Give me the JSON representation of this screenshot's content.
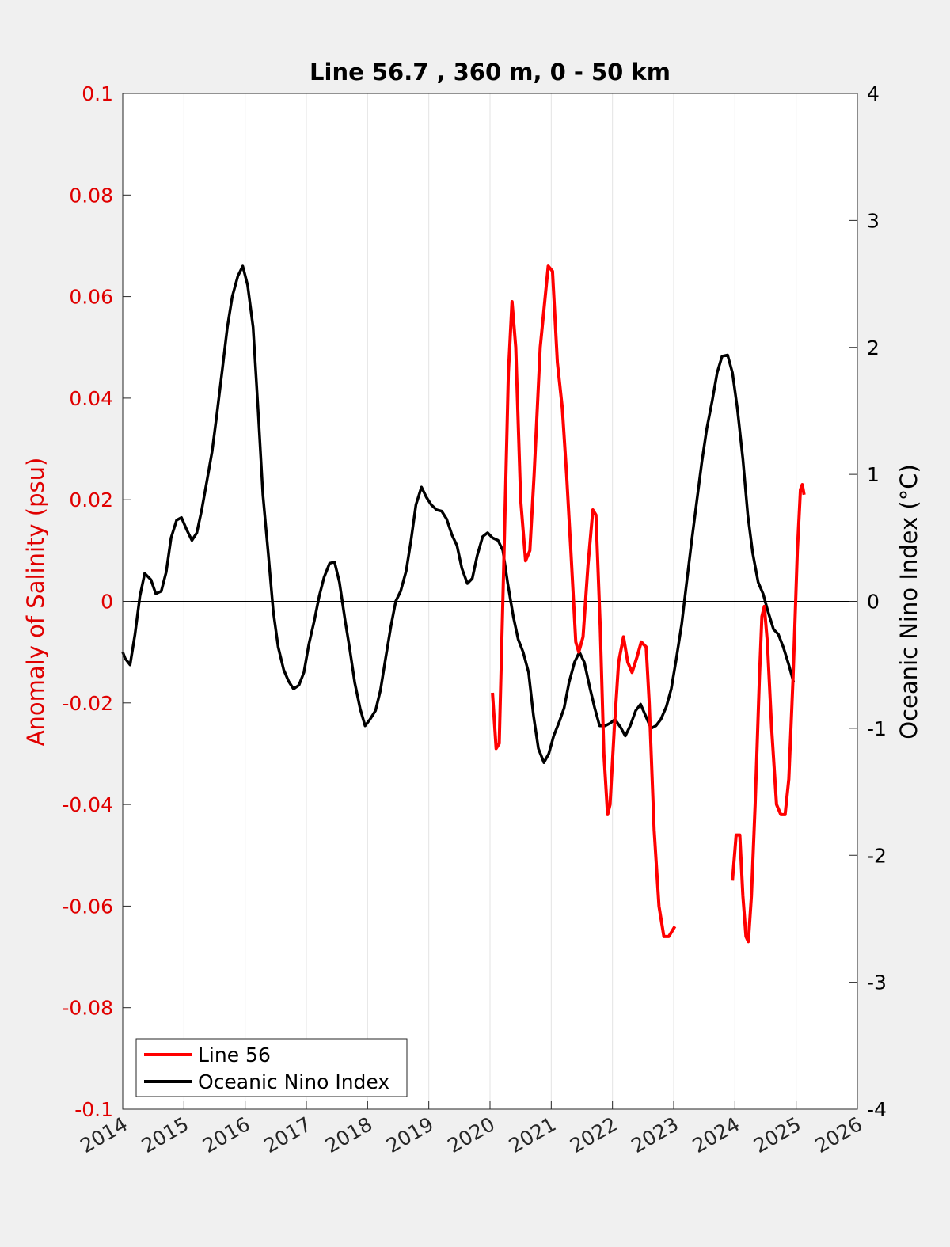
{
  "chart_data": {
    "type": "line",
    "title": "Line 56.7 , 360 m, 0 - 50 km",
    "xlabel": "",
    "ylabel_left": "Anomaly of Salinity (psu)",
    "ylabel_right": "Oceanic Nino Index (°C)",
    "xlim": [
      2014,
      2026
    ],
    "ylim_left": [
      -0.1,
      0.1
    ],
    "ylim_right": [
      -4,
      4
    ],
    "x_ticks": [
      "2014",
      "2015",
      "2016",
      "2017",
      "2018",
      "2019",
      "2020",
      "2021",
      "2022",
      "2023",
      "2024",
      "2025",
      "2026"
    ],
    "y_ticks_left": [
      "0.1",
      "0.08",
      "0.06",
      "0.04",
      "0.02",
      "0",
      "-0.02",
      "-0.04",
      "-0.06",
      "-0.08",
      "-0.1"
    ],
    "y_ticks_right": [
      "4",
      "3",
      "2",
      "1",
      "0",
      "-1",
      "-2",
      "-3",
      "-4"
    ],
    "grid": "vertical",
    "zero_line": true,
    "legend_position": "bottom-left",
    "colors": {
      "salinity": "#ff0000",
      "oni": "#000000",
      "left_axis": "#e00000",
      "right_axis": "#000000"
    },
    "series": [
      {
        "name": "Line 56",
        "axis": "left",
        "color": "#ff0000",
        "segments": [
          [
            [
              2020.04,
              -0.018
            ],
            [
              2020.1,
              -0.029
            ],
            [
              2020.15,
              -0.028
            ],
            [
              2020.22,
              0.005
            ],
            [
              2020.3,
              0.045
            ],
            [
              2020.36,
              0.059
            ],
            [
              2020.42,
              0.05
            ],
            [
              2020.5,
              0.02
            ],
            [
              2020.58,
              0.008
            ],
            [
              2020.65,
              0.01
            ],
            [
              2020.72,
              0.025
            ],
            [
              2020.82,
              0.05
            ],
            [
              2020.95,
              0.066
            ],
            [
              2021.02,
              0.065
            ],
            [
              2021.1,
              0.047
            ],
            [
              2021.18,
              0.038
            ],
            [
              2021.25,
              0.025
            ],
            [
              2021.32,
              0.01
            ],
            [
              2021.4,
              -0.008
            ],
            [
              2021.45,
              -0.01
            ],
            [
              2021.52,
              -0.007
            ],
            [
              2021.6,
              0.007
            ],
            [
              2021.68,
              0.018
            ],
            [
              2021.73,
              0.017
            ],
            [
              2021.8,
              -0.005
            ],
            [
              2021.86,
              -0.03
            ],
            [
              2021.92,
              -0.042
            ],
            [
              2021.96,
              -0.04
            ],
            [
              2022.03,
              -0.025
            ],
            [
              2022.1,
              -0.012
            ],
            [
              2022.18,
              -0.007
            ],
            [
              2022.25,
              -0.012
            ],
            [
              2022.32,
              -0.014
            ],
            [
              2022.4,
              -0.011
            ],
            [
              2022.47,
              -0.008
            ],
            [
              2022.55,
              -0.009
            ],
            [
              2022.6,
              -0.02
            ],
            [
              2022.68,
              -0.045
            ],
            [
              2022.76,
              -0.06
            ],
            [
              2022.84,
              -0.066
            ],
            [
              2022.92,
              -0.066
            ],
            [
              2023.02,
              -0.064
            ]
          ],
          [
            [
              2023.96,
              -0.055
            ],
            [
              2024.02,
              -0.046
            ],
            [
              2024.08,
              -0.046
            ],
            [
              2024.13,
              -0.058
            ],
            [
              2024.18,
              -0.066
            ],
            [
              2024.22,
              -0.067
            ],
            [
              2024.27,
              -0.058
            ],
            [
              2024.33,
              -0.04
            ],
            [
              2024.4,
              -0.015
            ],
            [
              2024.44,
              -0.003
            ],
            [
              2024.48,
              -0.001
            ],
            [
              2024.53,
              -0.008
            ],
            [
              2024.6,
              -0.025
            ],
            [
              2024.68,
              -0.04
            ],
            [
              2024.75,
              -0.042
            ],
            [
              2024.82,
              -0.042
            ],
            [
              2024.88,
              -0.035
            ],
            [
              2024.95,
              -0.015
            ],
            [
              2025.02,
              0.01
            ],
            [
              2025.07,
              0.022
            ],
            [
              2025.1,
              0.023
            ],
            [
              2025.13,
              0.021
            ]
          ]
        ]
      },
      {
        "name": "Oceanic Nino Index",
        "axis": "right",
        "color": "#000000",
        "points": [
          [
            2014.0,
            -0.4
          ],
          [
            2014.04,
            -0.45
          ],
          [
            2014.12,
            -0.5
          ],
          [
            2014.2,
            -0.26
          ],
          [
            2014.28,
            0.04
          ],
          [
            2014.36,
            0.22
          ],
          [
            2014.46,
            0.17
          ],
          [
            2014.54,
            0.06
          ],
          [
            2014.63,
            0.08
          ],
          [
            2014.71,
            0.23
          ],
          [
            2014.79,
            0.5
          ],
          [
            2014.88,
            0.64
          ],
          [
            2014.96,
            0.66
          ],
          [
            2015.04,
            0.57
          ],
          [
            2015.13,
            0.48
          ],
          [
            2015.21,
            0.54
          ],
          [
            2015.29,
            0.72
          ],
          [
            2015.38,
            0.96
          ],
          [
            2015.46,
            1.18
          ],
          [
            2015.54,
            1.48
          ],
          [
            2015.63,
            1.84
          ],
          [
            2015.71,
            2.16
          ],
          [
            2015.79,
            2.4
          ],
          [
            2015.88,
            2.56
          ],
          [
            2015.96,
            2.64
          ],
          [
            2016.04,
            2.49
          ],
          [
            2016.13,
            2.16
          ],
          [
            2016.21,
            1.52
          ],
          [
            2016.29,
            0.84
          ],
          [
            2016.38,
            0.36
          ],
          [
            2016.46,
            -0.08
          ],
          [
            2016.54,
            -0.36
          ],
          [
            2016.63,
            -0.54
          ],
          [
            2016.71,
            -0.63
          ],
          [
            2016.79,
            -0.69
          ],
          [
            2016.88,
            -0.66
          ],
          [
            2016.96,
            -0.56
          ],
          [
            2017.04,
            -0.34
          ],
          [
            2017.13,
            -0.15
          ],
          [
            2017.21,
            0.04
          ],
          [
            2017.29,
            0.19
          ],
          [
            2017.38,
            0.3
          ],
          [
            2017.46,
            0.31
          ],
          [
            2017.54,
            0.15
          ],
          [
            2017.63,
            -0.14
          ],
          [
            2017.71,
            -0.38
          ],
          [
            2017.79,
            -0.64
          ],
          [
            2017.88,
            -0.85
          ],
          [
            2017.96,
            -0.98
          ],
          [
            2018.04,
            -0.93
          ],
          [
            2018.13,
            -0.86
          ],
          [
            2018.21,
            -0.7
          ],
          [
            2018.29,
            -0.46
          ],
          [
            2018.38,
            -0.2
          ],
          [
            2018.46,
            0.0
          ],
          [
            2018.54,
            0.08
          ],
          [
            2018.63,
            0.24
          ],
          [
            2018.71,
            0.48
          ],
          [
            2018.79,
            0.76
          ],
          [
            2018.88,
            0.9
          ],
          [
            2018.96,
            0.82
          ],
          [
            2019.04,
            0.76
          ],
          [
            2019.13,
            0.72
          ],
          [
            2019.21,
            0.71
          ],
          [
            2019.29,
            0.65
          ],
          [
            2019.38,
            0.52
          ],
          [
            2019.46,
            0.44
          ],
          [
            2019.54,
            0.26
          ],
          [
            2019.63,
            0.14
          ],
          [
            2019.71,
            0.18
          ],
          [
            2019.79,
            0.36
          ],
          [
            2019.88,
            0.51
          ],
          [
            2019.96,
            0.54
          ],
          [
            2020.04,
            0.5
          ],
          [
            2020.13,
            0.48
          ],
          [
            2020.21,
            0.4
          ],
          [
            2020.29,
            0.14
          ],
          [
            2020.38,
            -0.12
          ],
          [
            2020.46,
            -0.3
          ],
          [
            2020.54,
            -0.4
          ],
          [
            2020.63,
            -0.56
          ],
          [
            2020.71,
            -0.9
          ],
          [
            2020.79,
            -1.16
          ],
          [
            2020.88,
            -1.27
          ],
          [
            2020.96,
            -1.2
          ],
          [
            2021.04,
            -1.06
          ],
          [
            2021.13,
            -0.95
          ],
          [
            2021.21,
            -0.84
          ],
          [
            2021.29,
            -0.64
          ],
          [
            2021.38,
            -0.48
          ],
          [
            2021.46,
            -0.4
          ],
          [
            2021.54,
            -0.48
          ],
          [
            2021.63,
            -0.68
          ],
          [
            2021.71,
            -0.84
          ],
          [
            2021.79,
            -0.98
          ],
          [
            2021.88,
            -0.98
          ],
          [
            2021.96,
            -0.96
          ],
          [
            2022.04,
            -0.93
          ],
          [
            2022.13,
            -0.99
          ],
          [
            2022.21,
            -1.06
          ],
          [
            2022.29,
            -0.98
          ],
          [
            2022.38,
            -0.86
          ],
          [
            2022.46,
            -0.81
          ],
          [
            2022.54,
            -0.9
          ],
          [
            2022.63,
            -1.0
          ],
          [
            2022.71,
            -0.98
          ],
          [
            2022.79,
            -0.93
          ],
          [
            2022.88,
            -0.83
          ],
          [
            2022.96,
            -0.69
          ],
          [
            2023.04,
            -0.46
          ],
          [
            2023.13,
            -0.18
          ],
          [
            2023.21,
            0.14
          ],
          [
            2023.29,
            0.46
          ],
          [
            2023.38,
            0.8
          ],
          [
            2023.46,
            1.1
          ],
          [
            2023.54,
            1.36
          ],
          [
            2023.63,
            1.58
          ],
          [
            2023.71,
            1.8
          ],
          [
            2023.79,
            1.93
          ],
          [
            2023.88,
            1.94
          ],
          [
            2023.96,
            1.8
          ],
          [
            2024.04,
            1.52
          ],
          [
            2024.13,
            1.12
          ],
          [
            2024.21,
            0.68
          ],
          [
            2024.29,
            0.38
          ],
          [
            2024.38,
            0.15
          ],
          [
            2024.46,
            0.06
          ],
          [
            2024.54,
            -0.08
          ],
          [
            2024.63,
            -0.22
          ],
          [
            2024.71,
            -0.26
          ],
          [
            2024.79,
            -0.36
          ],
          [
            2024.88,
            -0.5
          ],
          [
            2024.96,
            -0.64
          ]
        ]
      }
    ]
  }
}
